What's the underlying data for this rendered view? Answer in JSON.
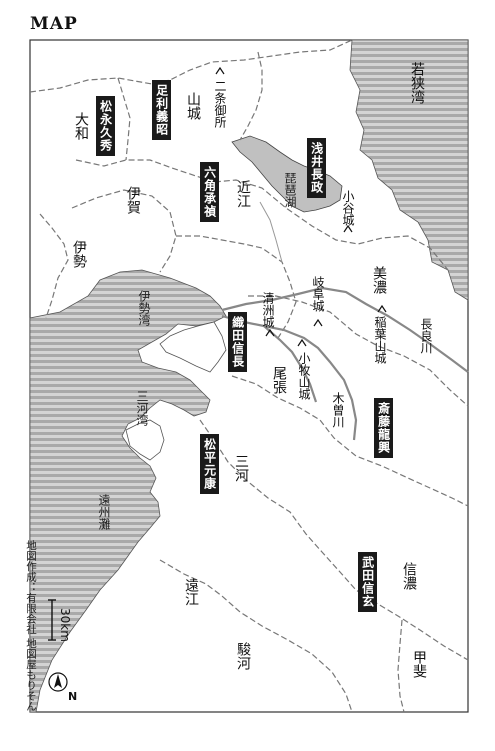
{
  "map_title": "MAP",
  "provinces": [
    {
      "id": "wakasa",
      "name": "若狭湾"
    },
    {
      "id": "yamashiro",
      "name": "山城"
    },
    {
      "id": "yamato",
      "name": "大和"
    },
    {
      "id": "iga",
      "name": "伊賀"
    },
    {
      "id": "ise",
      "name": "伊勢"
    },
    {
      "id": "omi",
      "name": "近江"
    },
    {
      "id": "mino",
      "name": "美濃"
    },
    {
      "id": "owari",
      "name": "尾張"
    },
    {
      "id": "mikawa",
      "name": "三河"
    },
    {
      "id": "totomi",
      "name": "遠江"
    },
    {
      "id": "suruga",
      "name": "駿河"
    },
    {
      "id": "shinano",
      "name": "信濃"
    },
    {
      "id": "kai",
      "name": "甲斐"
    }
  ],
  "water_bodies": {
    "biwa": "琵琶湖",
    "ise_bay": "伊勢湾",
    "mikawa_bay": "三河湾",
    "enshu_nada": "遠州灘",
    "kiso_river": "木曽川",
    "nagara_river": "長良川"
  },
  "castles": {
    "nijo": "二条御所",
    "odani": "小谷城",
    "gifu": "岐阜城",
    "inabayama": "稲葉山城",
    "kiyosu": "清洲城",
    "komaki": "小牧山城"
  },
  "clans": {
    "matsunaga": "松永久秀",
    "ashikaga": "足利義昭",
    "rokkaku": "六角承禎",
    "azai": "浅井長政",
    "oda": "織田信長",
    "matsudaira": "松平元康",
    "saito": "斎藤龍興",
    "takeda": "武田信玄"
  },
  "scale_label": "30km",
  "north_label": "N",
  "credit": "地図作成：有限会社 地図屋もりそん",
  "colors": {
    "sea": "#b8b8b8",
    "lake": "#c0c0c0",
    "land": "#ffffff",
    "border": "#777777",
    "clan_bg": "#1a1a1a"
  }
}
